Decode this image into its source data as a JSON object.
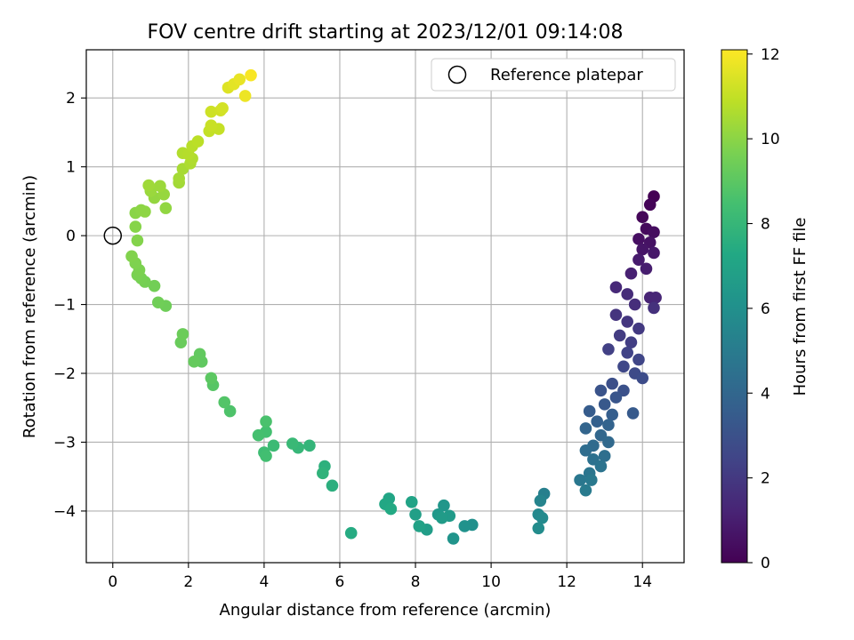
{
  "chart_data": {
    "type": "scatter",
    "title": "FOV centre drift starting at 2023/12/01 09:14:08",
    "xlabel": "Angular distance from reference (arcmin)",
    "ylabel": "Rotation from reference (arcmin)",
    "xlim": [
      -0.7,
      15.1
    ],
    "ylim": [
      -4.75,
      2.7
    ],
    "xticks": [
      0,
      2,
      4,
      6,
      8,
      10,
      12,
      14
    ],
    "yticks": [
      -4,
      -3,
      -2,
      -1,
      0,
      1,
      2
    ],
    "grid": true,
    "legend": {
      "position": "top-right",
      "entries": [
        "Reference platepar"
      ]
    },
    "reference_point": {
      "x": 0,
      "y": 0
    },
    "colorbar": {
      "label": "Hours from first FF file",
      "range": [
        0,
        12.1
      ],
      "ticks": [
        0,
        2,
        4,
        6,
        8,
        10,
        12
      ],
      "colormap": "viridis"
    },
    "points": [
      {
        "x": 14.3,
        "y": 0.57,
        "t": 0.0
      },
      {
        "x": 14.2,
        "y": 0.45,
        "t": 0.1
      },
      {
        "x": 14.0,
        "y": 0.27,
        "t": 0.2
      },
      {
        "x": 14.1,
        "y": 0.1,
        "t": 0.3
      },
      {
        "x": 14.3,
        "y": 0.05,
        "t": 0.4
      },
      {
        "x": 13.9,
        "y": -0.05,
        "t": 0.5
      },
      {
        "x": 14.2,
        "y": -0.1,
        "t": 0.6
      },
      {
        "x": 14.0,
        "y": -0.2,
        "t": 0.7
      },
      {
        "x": 14.3,
        "y": -0.25,
        "t": 0.8
      },
      {
        "x": 13.9,
        "y": -0.35,
        "t": 0.9
      },
      {
        "x": 14.1,
        "y": -0.48,
        "t": 1.0
      },
      {
        "x": 13.7,
        "y": -0.55,
        "t": 1.1
      },
      {
        "x": 14.2,
        "y": -0.9,
        "t": 1.2
      },
      {
        "x": 14.35,
        "y": -0.9,
        "t": 1.3
      },
      {
        "x": 13.3,
        "y": -0.75,
        "t": 1.4
      },
      {
        "x": 13.6,
        "y": -0.85,
        "t": 1.5
      },
      {
        "x": 13.8,
        "y": -1.0,
        "t": 1.6
      },
      {
        "x": 14.3,
        "y": -1.05,
        "t": 1.7
      },
      {
        "x": 13.3,
        "y": -1.15,
        "t": 1.8
      },
      {
        "x": 13.6,
        "y": -1.25,
        "t": 1.9
      },
      {
        "x": 13.9,
        "y": -1.35,
        "t": 2.0
      },
      {
        "x": 13.4,
        "y": -1.45,
        "t": 2.1
      },
      {
        "x": 13.7,
        "y": -1.55,
        "t": 2.2
      },
      {
        "x": 13.1,
        "y": -1.65,
        "t": 2.3
      },
      {
        "x": 13.6,
        "y": -1.7,
        "t": 2.4
      },
      {
        "x": 13.9,
        "y": -1.8,
        "t": 2.5
      },
      {
        "x": 13.5,
        "y": -1.9,
        "t": 2.6
      },
      {
        "x": 13.8,
        "y": -2.0,
        "t": 2.7
      },
      {
        "x": 14.0,
        "y": -2.07,
        "t": 2.8
      },
      {
        "x": 13.2,
        "y": -2.15,
        "t": 2.9
      },
      {
        "x": 13.5,
        "y": -2.25,
        "t": 3.0
      },
      {
        "x": 12.9,
        "y": -2.25,
        "t": 3.1
      },
      {
        "x": 13.3,
        "y": -2.35,
        "t": 3.2
      },
      {
        "x": 13.0,
        "y": -2.45,
        "t": 3.3
      },
      {
        "x": 13.75,
        "y": -2.58,
        "t": 3.4
      },
      {
        "x": 12.6,
        "y": -2.55,
        "t": 3.5
      },
      {
        "x": 13.2,
        "y": -2.6,
        "t": 3.6
      },
      {
        "x": 12.8,
        "y": -2.7,
        "t": 3.7
      },
      {
        "x": 13.1,
        "y": -2.75,
        "t": 3.8
      },
      {
        "x": 12.5,
        "y": -2.8,
        "t": 3.9
      },
      {
        "x": 12.9,
        "y": -2.9,
        "t": 4.0
      },
      {
        "x": 13.1,
        "y": -3.0,
        "t": 4.1
      },
      {
        "x": 12.7,
        "y": -3.05,
        "t": 4.2
      },
      {
        "x": 12.5,
        "y": -3.12,
        "t": 4.3
      },
      {
        "x": 13.0,
        "y": -3.2,
        "t": 4.4
      },
      {
        "x": 12.7,
        "y": -3.25,
        "t": 4.5
      },
      {
        "x": 12.9,
        "y": -3.35,
        "t": 4.6
      },
      {
        "x": 12.6,
        "y": -3.45,
        "t": 4.7
      },
      {
        "x": 12.35,
        "y": -3.55,
        "t": 4.8
      },
      {
        "x": 12.65,
        "y": -3.55,
        "t": 4.9
      },
      {
        "x": 12.5,
        "y": -3.7,
        "t": 5.0
      },
      {
        "x": 11.4,
        "y": -3.75,
        "t": 5.2
      },
      {
        "x": 11.3,
        "y": -3.85,
        "t": 5.4
      },
      {
        "x": 11.25,
        "y": -4.05,
        "t": 5.6
      },
      {
        "x": 11.35,
        "y": -4.1,
        "t": 5.7
      },
      {
        "x": 11.25,
        "y": -4.25,
        "t": 5.8
      },
      {
        "x": 9.5,
        "y": -4.2,
        "t": 6.0
      },
      {
        "x": 9.3,
        "y": -4.22,
        "t": 6.1
      },
      {
        "x": 9.0,
        "y": -4.4,
        "t": 6.2
      },
      {
        "x": 8.75,
        "y": -3.92,
        "t": 6.3
      },
      {
        "x": 8.6,
        "y": -4.05,
        "t": 6.4
      },
      {
        "x": 8.9,
        "y": -4.07,
        "t": 6.5
      },
      {
        "x": 8.7,
        "y": -4.1,
        "t": 6.6
      },
      {
        "x": 8.3,
        "y": -4.27,
        "t": 6.7
      },
      {
        "x": 8.0,
        "y": -4.05,
        "t": 6.8
      },
      {
        "x": 8.1,
        "y": -4.22,
        "t": 6.9
      },
      {
        "x": 7.9,
        "y": -3.87,
        "t": 7.0
      },
      {
        "x": 7.3,
        "y": -3.82,
        "t": 7.1
      },
      {
        "x": 7.2,
        "y": -3.9,
        "t": 7.2
      },
      {
        "x": 7.35,
        "y": -3.97,
        "t": 7.3
      },
      {
        "x": 6.3,
        "y": -4.32,
        "t": 7.4
      },
      {
        "x": 5.8,
        "y": -3.63,
        "t": 7.6
      },
      {
        "x": 5.6,
        "y": -3.35,
        "t": 7.7
      },
      {
        "x": 5.55,
        "y": -3.45,
        "t": 7.8
      },
      {
        "x": 5.2,
        "y": -3.05,
        "t": 7.9
      },
      {
        "x": 4.9,
        "y": -3.08,
        "t": 8.0
      },
      {
        "x": 4.75,
        "y": -3.02,
        "t": 8.1
      },
      {
        "x": 4.25,
        "y": -3.05,
        "t": 8.2
      },
      {
        "x": 4.0,
        "y": -3.15,
        "t": 8.3
      },
      {
        "x": 4.05,
        "y": -3.2,
        "t": 8.4
      },
      {
        "x": 4.05,
        "y": -2.85,
        "t": 8.45
      },
      {
        "x": 3.85,
        "y": -2.9,
        "t": 8.5
      },
      {
        "x": 4.05,
        "y": -2.7,
        "t": 8.6
      },
      {
        "x": 3.1,
        "y": -2.55,
        "t": 8.7
      },
      {
        "x": 2.95,
        "y": -2.42,
        "t": 8.8
      },
      {
        "x": 2.65,
        "y": -2.17,
        "t": 8.9
      },
      {
        "x": 2.6,
        "y": -2.07,
        "t": 9.0
      },
      {
        "x": 2.35,
        "y": -1.83,
        "t": 9.1
      },
      {
        "x": 2.3,
        "y": -1.72,
        "t": 9.15
      },
      {
        "x": 2.15,
        "y": -1.83,
        "t": 9.2
      },
      {
        "x": 1.8,
        "y": -1.55,
        "t": 9.3
      },
      {
        "x": 1.85,
        "y": -1.43,
        "t": 9.35
      },
      {
        "x": 1.4,
        "y": -1.02,
        "t": 9.4
      },
      {
        "x": 1.2,
        "y": -0.97,
        "t": 9.45
      },
      {
        "x": 1.1,
        "y": -0.73,
        "t": 9.5
      },
      {
        "x": 0.85,
        "y": -0.67,
        "t": 9.55
      },
      {
        "x": 0.75,
        "y": -0.62,
        "t": 9.6
      },
      {
        "x": 0.65,
        "y": -0.57,
        "t": 9.65
      },
      {
        "x": 0.7,
        "y": -0.5,
        "t": 9.7
      },
      {
        "x": 0.6,
        "y": -0.4,
        "t": 9.75
      },
      {
        "x": 0.5,
        "y": -0.3,
        "t": 9.8
      },
      {
        "x": 0.65,
        "y": -0.07,
        "t": 9.85
      },
      {
        "x": 0.6,
        "y": 0.13,
        "t": 9.9
      },
      {
        "x": 0.6,
        "y": 0.33,
        "t": 9.95
      },
      {
        "x": 0.75,
        "y": 0.37,
        "t": 10.0
      },
      {
        "x": 0.85,
        "y": 0.35,
        "t": 10.05
      },
      {
        "x": 1.4,
        "y": 0.4,
        "t": 10.1
      },
      {
        "x": 1.1,
        "y": 0.55,
        "t": 10.15
      },
      {
        "x": 1.35,
        "y": 0.6,
        "t": 10.2
      },
      {
        "x": 1.0,
        "y": 0.65,
        "t": 10.25
      },
      {
        "x": 1.25,
        "y": 0.72,
        "t": 10.3
      },
      {
        "x": 0.95,
        "y": 0.73,
        "t": 10.35
      },
      {
        "x": 1.75,
        "y": 0.77,
        "t": 10.4
      },
      {
        "x": 1.75,
        "y": 0.83,
        "t": 10.45
      },
      {
        "x": 1.85,
        "y": 0.97,
        "t": 10.5
      },
      {
        "x": 2.05,
        "y": 1.05,
        "t": 10.6
      },
      {
        "x": 2.1,
        "y": 1.12,
        "t": 10.65
      },
      {
        "x": 1.85,
        "y": 1.2,
        "t": 10.7
      },
      {
        "x": 2.0,
        "y": 1.18,
        "t": 10.75
      },
      {
        "x": 2.1,
        "y": 1.3,
        "t": 10.8
      },
      {
        "x": 2.25,
        "y": 1.37,
        "t": 10.85
      },
      {
        "x": 2.55,
        "y": 1.52,
        "t": 11.0
      },
      {
        "x": 2.8,
        "y": 1.55,
        "t": 11.05
      },
      {
        "x": 2.6,
        "y": 1.6,
        "t": 11.1
      },
      {
        "x": 2.6,
        "y": 1.8,
        "t": 11.2
      },
      {
        "x": 2.85,
        "y": 1.82,
        "t": 11.25
      },
      {
        "x": 2.9,
        "y": 1.85,
        "t": 11.3
      },
      {
        "x": 3.05,
        "y": 2.15,
        "t": 11.5
      },
      {
        "x": 3.2,
        "y": 2.2,
        "t": 11.6
      },
      {
        "x": 3.35,
        "y": 2.27,
        "t": 11.7
      },
      {
        "x": 3.5,
        "y": 2.03,
        "t": 11.8
      },
      {
        "x": 3.65,
        "y": 2.33,
        "t": 12.0
      }
    ]
  }
}
